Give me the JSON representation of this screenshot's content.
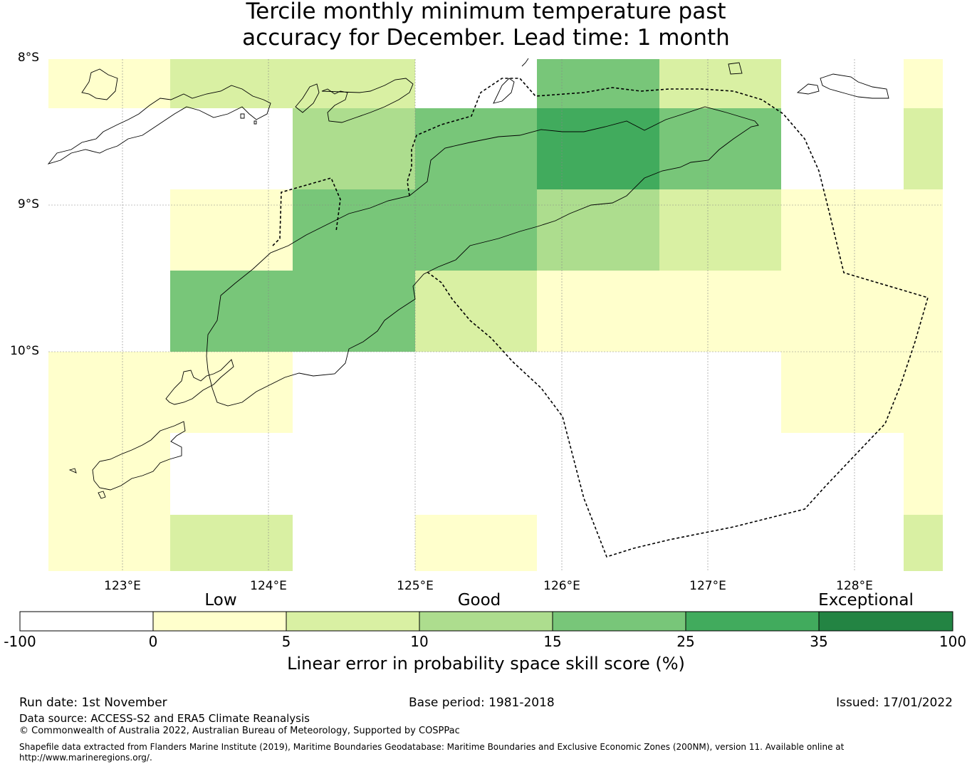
{
  "title": {
    "line1": "Tercile monthly minimum temperature past",
    "line2": "accuracy for December. Lead time: 1 month"
  },
  "map": {
    "lat_labels": [
      "8°S",
      "9°S",
      "10°S"
    ],
    "lon_labels": [
      "123°E",
      "124°E",
      "125°E",
      "126°E",
      "127°E",
      "128°E"
    ],
    "colors": {
      "low_0_5": "#ffffcc",
      "5_10": "#d9f0a3",
      "10_15": "#addd8e",
      "15_25": "#78c679",
      "25_35": "#41ab5d",
      "35_100": "#238443"
    },
    "skill_grid_note_rows": [
      [
        "0-5",
        "5-10",
        "5-10",
        "none",
        "15-25",
        "5-10",
        "none",
        "0-5"
      ],
      [
        "none",
        "none",
        "10-15",
        "15-25",
        "25-35",
        "15-25",
        "none",
        "5-10"
      ],
      [
        "none",
        "0-5",
        "15-25",
        "15-25",
        "10-15",
        "5-10",
        "0-5",
        "0-5"
      ],
      [
        "none",
        "15-25",
        "15-25",
        "5-10",
        "0-5",
        "0-5",
        "0-5",
        "0-5"
      ],
      [
        "0-5",
        "0-5",
        "none",
        "none",
        "none",
        "none",
        "0-5",
        "0-5"
      ],
      [
        "0-5",
        "none",
        "none",
        "none",
        "none",
        "none",
        "none",
        "0-5"
      ],
      [
        "0-5",
        "5-10",
        "none",
        "0-5",
        "none",
        "none",
        "none",
        "5-10"
      ]
    ]
  },
  "colorbar": {
    "categories": [
      "Low",
      "Good",
      "Exceptional"
    ],
    "ticks": [
      "-100",
      "0",
      "5",
      "10",
      "15",
      "25",
      "35",
      "100"
    ],
    "colors": [
      "#ffffff",
      "#ffffcc",
      "#d9f0a3",
      "#addd8e",
      "#78c679",
      "#41ab5d",
      "#238443"
    ],
    "label": "Linear error in probability space skill score (%)"
  },
  "footer": {
    "run_date": "Run date: 1st November",
    "base_period": "Base period: 1981-2018",
    "issued": "Issued: 17/01/2022",
    "data_source": "Data source: ACCESS-S2 and ERA5 Climate Reanalysis",
    "copyright": "© Commonwealth of Australia 2022, Australian Bureau of Meteorology, Supported by COSPPac",
    "shapefile_line1": "Shapefile data extracted from Flanders Marine Institute (2019), Maritime Boundaries Geodatabase: Maritime Boundaries and Exclusive Economic Zones (200NM), version 11. Available online at",
    "shapefile_line2": "http://www.marineregions.org/."
  }
}
